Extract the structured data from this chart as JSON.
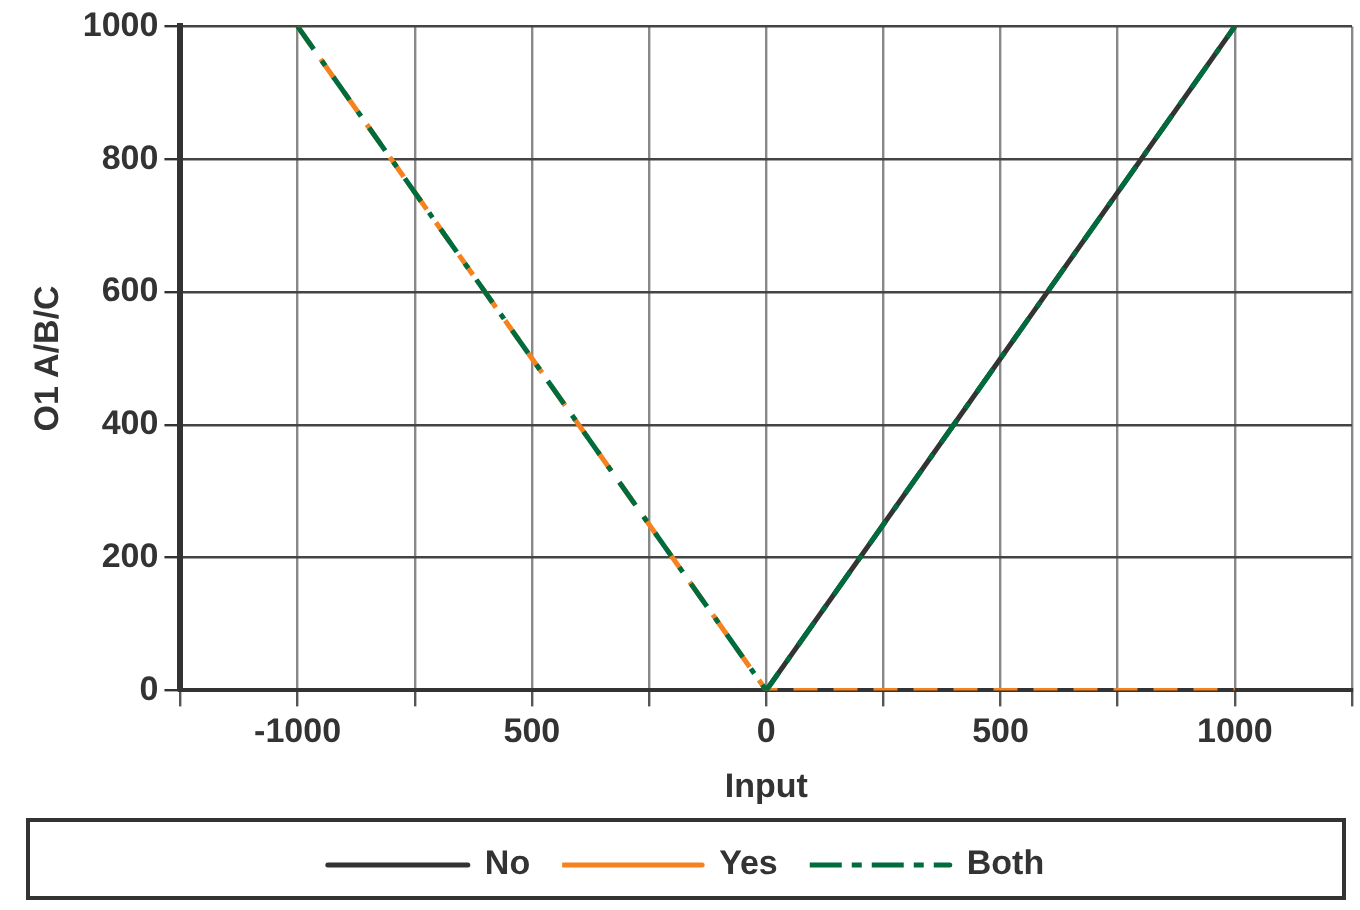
{
  "chart_data": {
    "type": "line",
    "xlabel": "Input",
    "ylabel": "O1 A/B/C",
    "xlim": [
      -1250,
      1250
    ],
    "xticks": [
      {
        "value": -1250,
        "label": null
      },
      {
        "value": -1000,
        "label": "-1000"
      },
      {
        "value": -750,
        "label": null
      },
      {
        "value": -500,
        "label": "500"
      },
      {
        "value": -250,
        "label": null
      },
      0,
      {
        "value": 250,
        "label": null
      },
      500,
      {
        "value": 750,
        "label": null
      },
      1000,
      {
        "value": 1250,
        "label": null
      }
    ],
    "ylim": [
      0,
      1000
    ],
    "yticks": [
      0,
      200,
      400,
      600,
      800,
      1000
    ],
    "grid": true,
    "legend": "bottom",
    "marker": "none",
    "series": [
      {
        "name": "No",
        "color": "#333333",
        "line_style": "solid",
        "x": [
          -1000,
          0,
          1000
        ],
        "values": [
          0,
          0,
          1000
        ]
      },
      {
        "name": "Yes",
        "color": "#f5821f",
        "line_style": "dashed",
        "x": [
          -1000,
          0,
          1000
        ],
        "values": [
          1000,
          0,
          0
        ]
      },
      {
        "name": "Both",
        "color": "#006b3c",
        "line_style": "dashdot",
        "x": [
          -1000,
          0,
          1000
        ],
        "values": [
          1000,
          0,
          1000
        ]
      }
    ]
  }
}
